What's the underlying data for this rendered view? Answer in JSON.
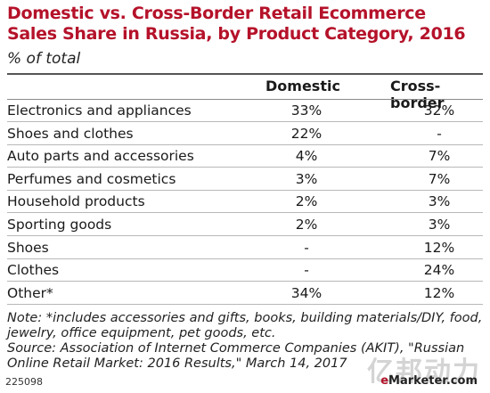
{
  "header": {
    "title": "Domestic vs. Cross-Border Retail Ecommerce Sales Share in Russia, by Product Category, 2016",
    "subtitle": "% of total"
  },
  "chart_data": {
    "type": "table",
    "title": "Domestic vs. Cross-Border Retail Ecommerce Sales Share in Russia, by Product Category, 2016",
    "subtitle": "% of total",
    "columns": [
      "",
      "Domestic",
      "Cross-border"
    ],
    "rows": [
      {
        "category": "Electronics and appliances",
        "domestic": "33%",
        "cross_border": "32%"
      },
      {
        "category": "Shoes and clothes",
        "domestic": "22%",
        "cross_border": "-"
      },
      {
        "category": "Auto parts and accessories",
        "domestic": "4%",
        "cross_border": "7%"
      },
      {
        "category": "Perfumes and cosmetics",
        "domestic": "3%",
        "cross_border": "7%"
      },
      {
        "category": "Household products",
        "domestic": "2%",
        "cross_border": "3%"
      },
      {
        "category": "Sporting goods",
        "domestic": "2%",
        "cross_border": "3%"
      },
      {
        "category": "Shoes",
        "domestic": "-",
        "cross_border": "12%"
      },
      {
        "category": "Clothes",
        "domestic": "-",
        "cross_border": "24%"
      },
      {
        "category": "Other*",
        "domestic": "34%",
        "cross_border": "12%"
      }
    ]
  },
  "footer": {
    "note": "Note: *includes accessories and gifts, books, building materials/DIY, food, jewelry, office equipment, pet goods, etc.",
    "source": "Source: Association of Internet Commerce Companies (AKIT), \"Russian Online Retail Market: 2016 Results,\" March 14, 2017",
    "id": "225098",
    "brand_e": "e",
    "brand_rest": "Marketer.com",
    "watermark": "亿邦动力"
  },
  "colors": {
    "title": "#b5122a",
    "rule": "#8a8a8a",
    "row_line": "#b8b8b8"
  }
}
